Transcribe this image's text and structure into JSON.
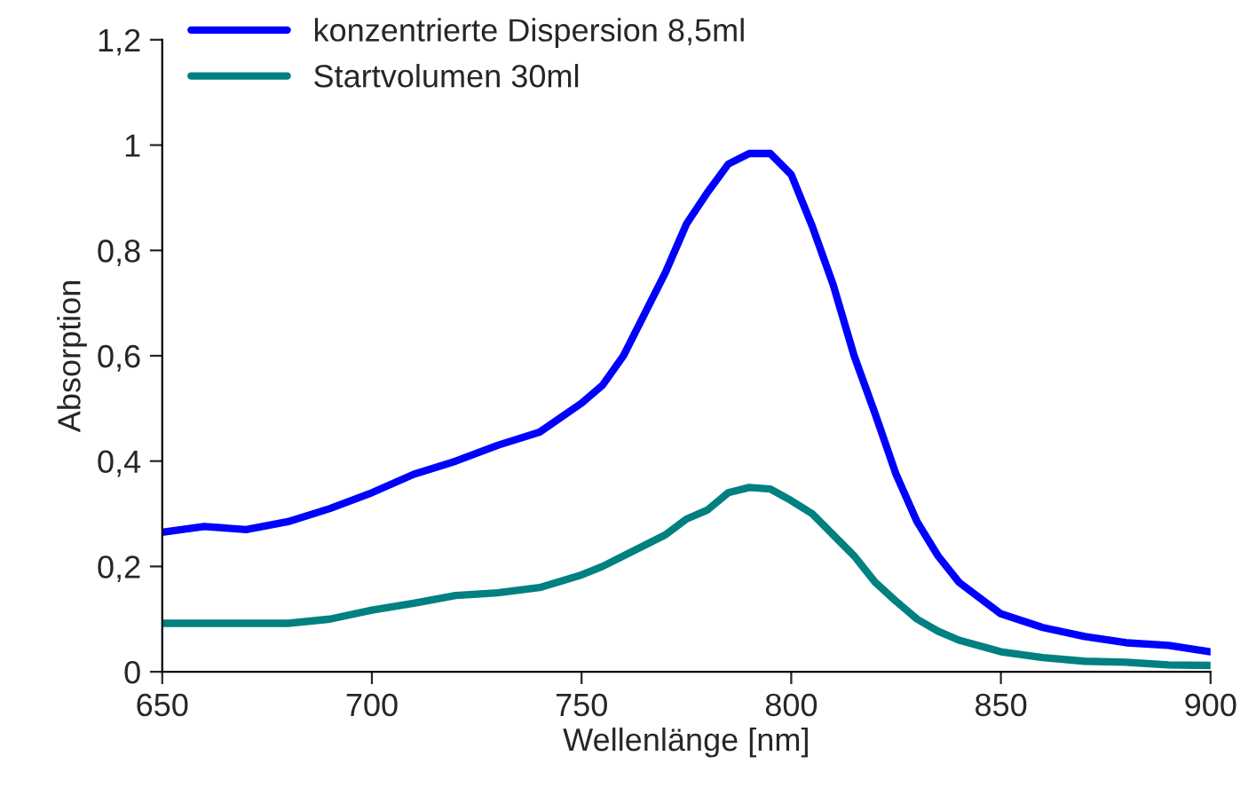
{
  "chart_data": {
    "type": "line",
    "xlabel": "Wellenlänge [nm]",
    "ylabel": "Absorption",
    "x": [
      650,
      660,
      670,
      680,
      690,
      700,
      710,
      720,
      730,
      740,
      750,
      755,
      760,
      770,
      775,
      780,
      785,
      790,
      795,
      800,
      805,
      810,
      815,
      820,
      825,
      830,
      835,
      840,
      850,
      860,
      870,
      880,
      890,
      900
    ],
    "series": [
      {
        "name": "konzentrierte Dispersion 8,5ml",
        "color": "#0000ff",
        "values": [
          0.265,
          0.276,
          0.27,
          0.285,
          0.31,
          0.34,
          0.375,
          0.4,
          0.43,
          0.455,
          0.51,
          0.544,
          0.6,
          0.758,
          0.85,
          0.91,
          0.964,
          0.984,
          0.984,
          0.944,
          0.846,
          0.735,
          0.6,
          0.49,
          0.375,
          0.285,
          0.22,
          0.17,
          0.11,
          0.084,
          0.067,
          0.055,
          0.05,
          0.038
        ]
      },
      {
        "name": "Startvolumen 30ml",
        "color": "#008080",
        "values": [
          0.092,
          0.092,
          0.092,
          0.092,
          0.1,
          0.117,
          0.13,
          0.145,
          0.15,
          0.16,
          0.184,
          0.2,
          0.22,
          0.26,
          0.29,
          0.307,
          0.34,
          0.35,
          0.347,
          0.325,
          0.3,
          0.26,
          0.22,
          0.17,
          0.134,
          0.1,
          0.077,
          0.06,
          0.038,
          0.027,
          0.02,
          0.018,
          0.013,
          0.012
        ]
      }
    ],
    "xlim": [
      650,
      900
    ],
    "xticks": [
      650,
      700,
      750,
      800,
      850,
      900
    ],
    "ylim": [
      0,
      1.2
    ],
    "yticks": [
      {
        "value": 0,
        "label": "0"
      },
      {
        "value": 0.2,
        "label": "0,2"
      },
      {
        "value": 0.4,
        "label": "0,4"
      },
      {
        "value": 0.6,
        "label": "0,6"
      },
      {
        "value": 0.8,
        "label": "0,8"
      },
      {
        "value": 1,
        "label": "1"
      },
      {
        "value": 1.2,
        "label": "1,2"
      }
    ],
    "grid": false,
    "legend": "top left",
    "line_style": "solid",
    "marker": "none"
  }
}
